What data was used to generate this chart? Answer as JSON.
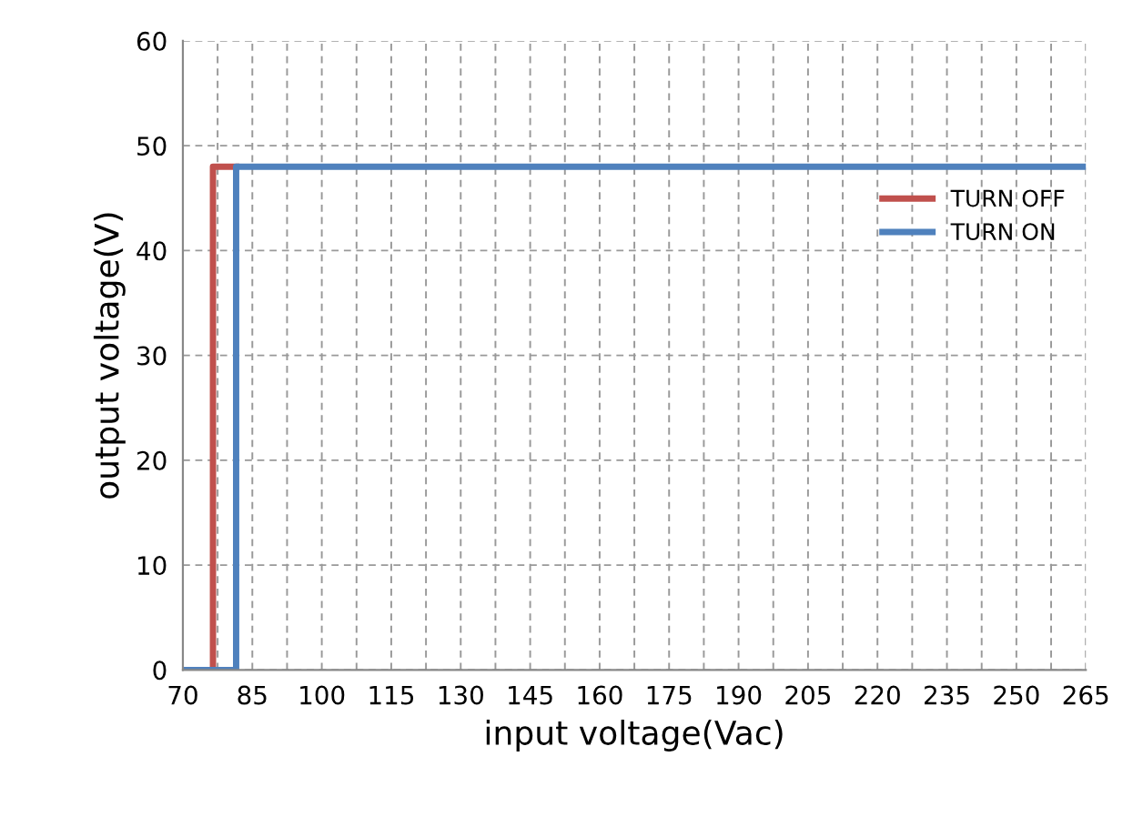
{
  "chart_data": {
    "type": "line",
    "xlabel": "input voltage(Vac)",
    "ylabel": "output voltage(V)",
    "series": [
      {
        "name": "TURN OFF",
        "color": "#c0504d",
        "x": [
          76.5,
          76.5,
          81.5
        ],
        "values": [
          0,
          48,
          48
        ]
      },
      {
        "name": "TURN ON",
        "color": "#4f81bd",
        "x": [
          70,
          81.5,
          81.5,
          265
        ],
        "values": [
          0,
          0,
          48,
          48
        ]
      }
    ],
    "xlim": [
      70,
      265
    ],
    "ylim": [
      0,
      60
    ],
    "xticks": [
      70,
      {
        "value": 77.5,
        "label": null
      },
      85,
      {
        "value": 92.5,
        "label": null
      },
      100,
      {
        "value": 107.5,
        "label": null
      },
      115,
      {
        "value": 122.5,
        "label": null
      },
      130,
      {
        "value": 137.5,
        "label": null
      },
      145,
      {
        "value": 152.5,
        "label": null
      },
      160,
      {
        "value": 167.5,
        "label": null
      },
      175,
      {
        "value": 182.5,
        "label": null
      },
      190,
      {
        "value": 197.5,
        "label": null
      },
      205,
      {
        "value": 212.5,
        "label": null
      },
      220,
      {
        "value": 227.5,
        "label": null
      },
      235,
      {
        "value": 242.5,
        "label": null
      },
      250,
      {
        "value": 257.5,
        "label": null
      },
      265
    ],
    "yticks": [
      0,
      10,
      20,
      30,
      40,
      50,
      60
    ],
    "grid": true,
    "legend": "right",
    "marker": "none",
    "line_style": "solid"
  }
}
